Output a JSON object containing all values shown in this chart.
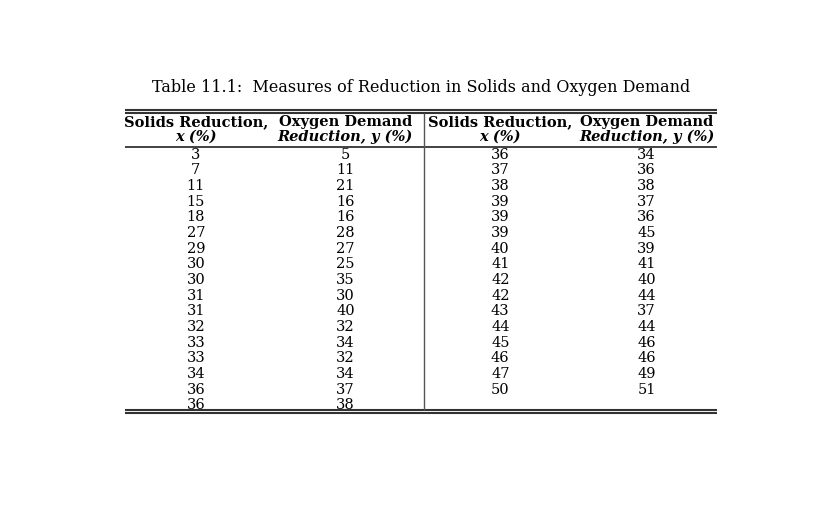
{
  "title": "Table 11.1:  Measures of Reduction in Solids and Oxygen Demand",
  "col_headers_line1": [
    "Solids Reduction,",
    "Oxygen Demand",
    "Solids Reduction,",
    "Oxygen Demand"
  ],
  "col_headers_line2": [
    "x (%)",
    "Reduction, y (%)",
    "x (%)",
    "Reduction, y (%)"
  ],
  "left_col1": [
    3,
    7,
    11,
    15,
    18,
    27,
    29,
    30,
    30,
    31,
    31,
    32,
    33,
    33,
    34,
    36,
    36
  ],
  "left_col2": [
    5,
    11,
    21,
    16,
    16,
    28,
    27,
    25,
    35,
    30,
    40,
    32,
    34,
    32,
    34,
    37,
    38
  ],
  "right_col1": [
    36,
    37,
    38,
    39,
    39,
    39,
    40,
    41,
    42,
    42,
    43,
    44,
    45,
    46,
    47,
    50
  ],
  "right_col2": [
    34,
    36,
    38,
    37,
    36,
    45,
    39,
    41,
    40,
    44,
    37,
    44,
    46,
    46,
    49,
    51
  ],
  "bg_color": "#ffffff",
  "text_color": "#000000",
  "title_fontsize": 11.5,
  "header_fontsize": 10.5,
  "cell_fontsize": 10.5,
  "fig_width": 8.21,
  "fig_height": 5.08,
  "dpi": 100
}
